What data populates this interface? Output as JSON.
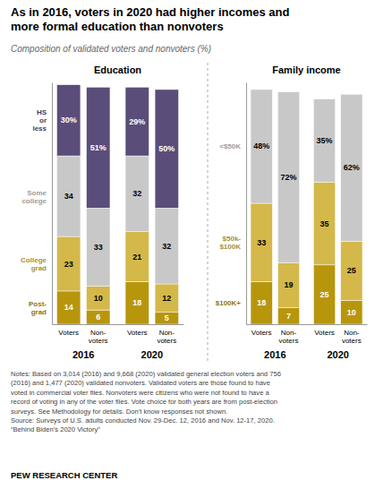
{
  "title": "As in 2016, voters in 2020 had higher incomes and\nmore formal education than nonvoters",
  "subtitle": "Composition of validated voters and nonvoters (%)",
  "annotations": [
    "Notes: Based on 3,014 (2016) and 9,668 (2020) validated general election voters and 756\n(2016) and 1,477 (2020) validated nonvoters. Validated voters are those found to have\nvoted in commercial voter files. Nonvoters were citizens who were not found to have a\nrecord of voting in any of the voter files. Vote choice for both years are from post-election\nsurveys. See Methodology for details. Don’t know responses not shown.\nSource: Surveys of U.S. adults conducted Nov. 29-Dec. 12, 2016 and Nov. 12-17, 2020.\n“Behind Biden’s 2020 Victory”",
    "PEW RESEARCH CENTER"
  ],
  "chart_data": [
    {
      "type": "bar",
      "title": "Education",
      "stacked": true,
      "data_labels": true,
      "legend": "left",
      "tick_labels": "x",
      "categories": [
        "Voters",
        "Non-\nvoters",
        "Voters",
        "Non-\nvoters"
      ],
      "group_labels": [
        "2016",
        "2020"
      ],
      "ylim": [
        0,
        102
      ],
      "yticks": [],
      "series": [
        {
          "name": "Post-\ngrad",
          "color": "#b8960c",
          "values": [
            14,
            6,
            18,
            5
          ]
        },
        {
          "name": "College\ngrad",
          "color": "#d4b84a",
          "values": [
            23,
            10,
            21,
            12
          ]
        },
        {
          "name": "Some\ncollege",
          "color": "#c8c8c8",
          "values": [
            34,
            33,
            32,
            32
          ]
        },
        {
          "name": "HS\nor\nless",
          "color": "#5b4d7a",
          "values": [
            30,
            51,
            29,
            50
          ],
          "value_labels": [
            "30%",
            "51%",
            "29%",
            "50%"
          ]
        }
      ]
    },
    {
      "type": "bar",
      "title": "Family income",
      "stacked": true,
      "data_labels": true,
      "legend": "left",
      "tick_labels": "x",
      "categories": [
        "Voters",
        "Non-\nvoters",
        "Voters",
        "Non-\nvoters"
      ],
      "group_labels": [
        "2016",
        "2020"
      ],
      "ylim": [
        0,
        102
      ],
      "yticks": [],
      "series": [
        {
          "name": "$100K+",
          "color": "#b8960c",
          "values": [
            18,
            7,
            25,
            10
          ]
        },
        {
          "name": "$50k-\n$100K",
          "color": "#d4b84a",
          "values": [
            33,
            19,
            35,
            25
          ]
        },
        {
          "name": "<$50K",
          "color": "#c8c8c8",
          "values": [
            48,
            72,
            35,
            62
          ],
          "value_labels": [
            "48%",
            "72%",
            "35%",
            "62%"
          ]
        }
      ]
    }
  ]
}
